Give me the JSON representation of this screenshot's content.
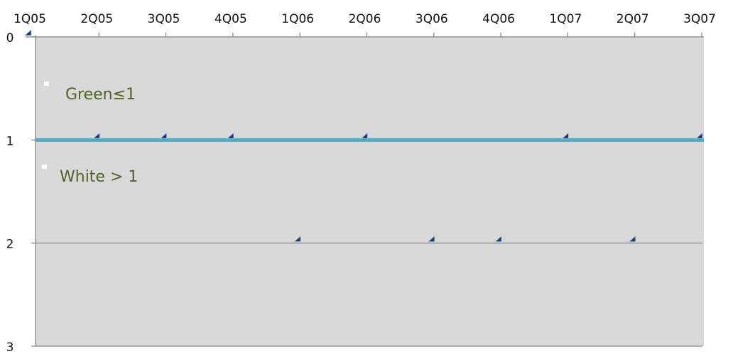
{
  "chart_data": {
    "type": "scatter",
    "title": "",
    "xlabel": "",
    "ylabel": "",
    "categories": [
      "1Q05",
      "2Q05",
      "3Q05",
      "4Q05",
      "1Q06",
      "2Q06",
      "3Q06",
      "4Q06",
      "1Q07",
      "2Q07",
      "3Q07"
    ],
    "y_axis": {
      "reversed": true,
      "ylim": [
        0,
        3
      ],
      "ticks": [
        0,
        1,
        2,
        3
      ]
    },
    "series": [
      {
        "values": [
          0,
          1,
          1,
          1,
          2,
          1,
          2,
          2,
          1,
          2,
          1
        ]
      }
    ],
    "threshold": {
      "value": 1
    },
    "annotations": [
      {
        "text": "Green≤1"
      },
      {
        "text": "White > 1"
      }
    ],
    "grid": "horizontal",
    "colors": {
      "plot_background": "#d9d9d9",
      "threshold_line": "#4bacc6",
      "marker": "#1f3864",
      "annotation_text": "#4f6228",
      "gridline": "#808080"
    }
  }
}
